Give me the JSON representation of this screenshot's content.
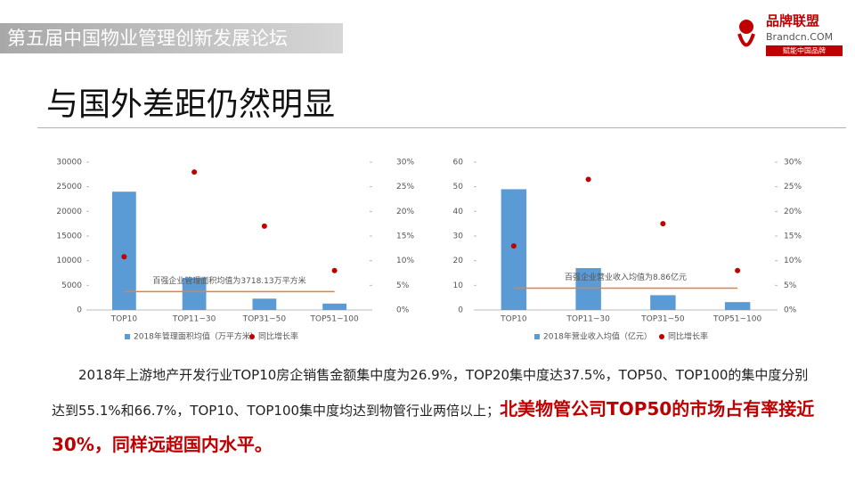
{
  "header": {
    "banner": "第五届中国物业管理创新发展论坛",
    "logo_name": "品牌联盟",
    "logo_site": "Brandcn.COM",
    "logo_slogan": "赋能中国品牌"
  },
  "title": "与国外差距仍然明显",
  "body": {
    "text": "2018年上游地产开发行业TOP10房企销售金额集中度为26.9%，TOP20集中度达37.5%，TOP50、TOP100的集中度分别达到55.1%和66.7%，TOP10、TOP100集中度均达到物管行业两倍以上；",
    "highlight": "北美物管公司TOP50的市场占有率接近30%，同样远超国内水平。"
  },
  "chart_data": [
    {
      "type": "bar",
      "categories": [
        "TOP10",
        "TOP11~30",
        "TOP31~50",
        "TOP51~100"
      ],
      "series": [
        {
          "name": "2018年管理面积均值（万平方米）",
          "color": "#5b9bd5",
          "values": [
            24000,
            6500,
            2300,
            1300
          ]
        },
        {
          "name": "同比增长率",
          "color": "#c00000",
          "axis": "y2",
          "values": [
            10.8,
            28,
            17,
            8
          ]
        }
      ],
      "reference_line": {
        "value": 3718.13,
        "color": "#ed7d31",
        "label": "百强企业管理面积均值为3718.13万平方米"
      },
      "ylim": [
        0,
        30000
      ],
      "yticks": [
        0,
        5000,
        10000,
        15000,
        20000,
        25000,
        30000
      ],
      "y2lim": [
        0,
        30
      ],
      "y2ticks": [
        {
          "value": 0,
          "label": "0%"
        },
        {
          "value": 5,
          "label": "5%"
        },
        {
          "value": 10,
          "label": "10%"
        },
        {
          "value": 15,
          "label": "15%"
        },
        {
          "value": 20,
          "label": "20%"
        },
        {
          "value": 25,
          "label": "25%"
        },
        {
          "value": 30,
          "label": "30%"
        }
      ]
    },
    {
      "type": "bar",
      "categories": [
        "TOP10",
        "TOP11~30",
        "TOP31~50",
        "TOP51~100"
      ],
      "series": [
        {
          "name": "2018年营业收入均值（亿元）",
          "color": "#5b9bd5",
          "values": [
            49,
            17,
            6,
            3.2
          ]
        },
        {
          "name": "同比增长率",
          "color": "#c00000",
          "axis": "y2",
          "values": [
            13,
            26.5,
            17.5,
            8
          ]
        }
      ],
      "reference_line": {
        "value": 8.86,
        "color": "#ed7d31",
        "label": "百强企业营业收入均值为8.86亿元"
      },
      "ylim": [
        0,
        60
      ],
      "yticks": [
        0,
        10,
        20,
        30,
        40,
        50,
        60
      ],
      "y2lim": [
        0,
        30
      ],
      "y2ticks": [
        {
          "value": 0,
          "label": "0%"
        },
        {
          "value": 5,
          "label": "5%"
        },
        {
          "value": 10,
          "label": "10%"
        },
        {
          "value": 15,
          "label": "15%"
        },
        {
          "value": 20,
          "label": "20%"
        },
        {
          "value": 25,
          "label": "25%"
        },
        {
          "value": 30,
          "label": "30%"
        }
      ]
    }
  ]
}
